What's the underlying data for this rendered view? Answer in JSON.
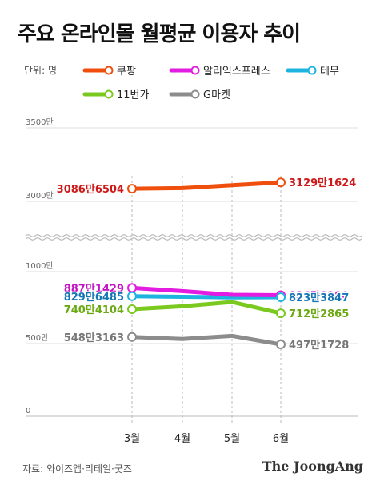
{
  "title": "주요 온라인몰 월평균 이용자 추이",
  "source": "자료: 와이즈앱·리테일·굿즈",
  "brand": "The JoongAng",
  "unit": "단위: 명",
  "chart_data": {
    "type": "line",
    "categories": [
      "3월",
      "4월",
      "5월",
      "6월"
    ],
    "y_ticks": [
      "0",
      "500만",
      "1000만",
      "3000만",
      "3500만"
    ],
    "y_scale": "broken",
    "y_break": [
      1000,
      3000
    ],
    "grid": true,
    "legend_position": "top",
    "series": [
      {
        "name": "쿠팡",
        "color": "#f04e0c",
        "label_color": "#cc1a1a",
        "values": [
          3086.6504,
          3090,
          3110,
          3129.1624
        ],
        "labels": [
          "3086만6504",
          "3129만1624"
        ]
      },
      {
        "name": "알리익스프레스",
        "color": "#e21ce0",
        "label_color": "#c414c2",
        "values": [
          887.1429,
          865,
          840,
          836.828
        ],
        "labels": [
          "887만1429",
          "836만8280"
        ]
      },
      {
        "name": "테무",
        "color": "#1eb4e0",
        "label_color": "#1477b5",
        "values": [
          829.6485,
          826,
          822,
          823.3847
        ],
        "labels": [
          "829만6485",
          "823만3847"
        ]
      },
      {
        "name": "11번가",
        "color": "#7ac91f",
        "label_color": "#6aaa10",
        "values": [
          740.4104,
          760,
          790,
          712.2865
        ],
        "labels": [
          "740만4104",
          "712만2865"
        ]
      },
      {
        "name": "G마켓",
        "color": "#8c8c8c",
        "label_color": "#777777",
        "values": [
          548.3163,
          535,
          556,
          497.1728
        ],
        "labels": [
          "548만3163",
          "497만1728"
        ]
      }
    ]
  }
}
